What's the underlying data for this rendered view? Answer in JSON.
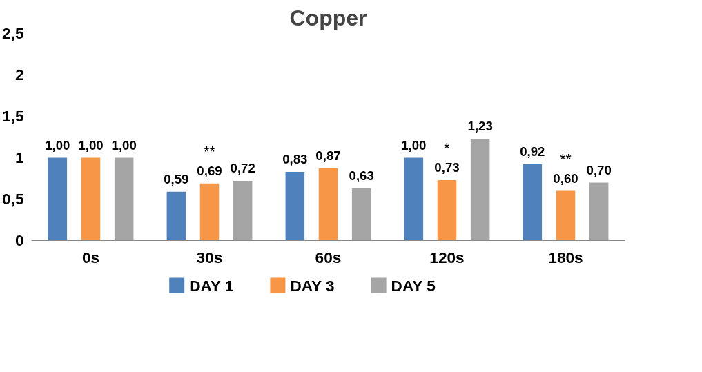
{
  "chart_data": {
    "type": "bar",
    "title": "Copper",
    "categories": [
      "0s",
      "30s",
      "60s",
      "120s",
      "180s"
    ],
    "series": [
      {
        "name": "DAY 1",
        "color": "#4f81bd",
        "values": [
          1.0,
          0.59,
          0.83,
          1.0,
          0.92
        ],
        "value_labels": [
          "1,00",
          "0,59",
          "0,83",
          "1,00",
          "0,92"
        ]
      },
      {
        "name": "DAY 3",
        "color": "#f79646",
        "values": [
          1.0,
          0.69,
          0.87,
          0.73,
          0.6
        ],
        "value_labels": [
          "1,00",
          "0,69",
          "0,87",
          "0,73",
          "0,60"
        ]
      },
      {
        "name": "DAY 5",
        "color": "#a5a5a5",
        "values": [
          1.0,
          0.72,
          0.63,
          1.23,
          0.7
        ],
        "value_labels": [
          "1,00",
          "0,72",
          "0,63",
          "1,23",
          "0,70"
        ]
      }
    ],
    "ylim": [
      0,
      2.5
    ],
    "yticks": [
      0,
      {
        "value": 0.5,
        "label": "0,5"
      },
      1,
      {
        "value": 1.5,
        "label": "1,5"
      },
      2,
      {
        "value": 2.5,
        "label": "2,5"
      }
    ],
    "annotations": [
      {
        "text": "**",
        "x": "30s",
        "y": 0.69
      },
      {
        "text": "*",
        "x": "120s",
        "y": 0.73
      },
      {
        "text": "**",
        "x": "180s",
        "y": 0.6
      }
    ],
    "grid": false,
    "legend": "bottom"
  }
}
